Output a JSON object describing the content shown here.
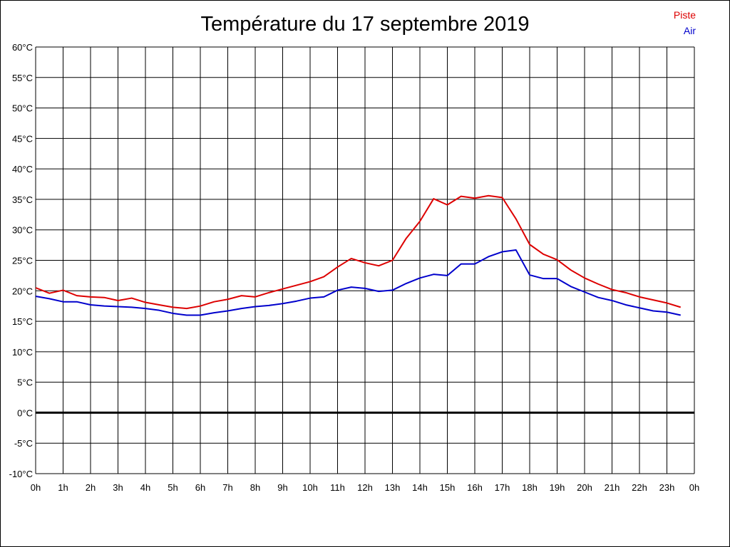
{
  "chart_data": {
    "type": "line",
    "title": "Température du 17 septembre 2019",
    "xlabel": "",
    "ylabel": "",
    "x_tick_labels": [
      "0h",
      "1h",
      "2h",
      "3h",
      "4h",
      "5h",
      "6h",
      "7h",
      "8h",
      "9h",
      "10h",
      "11h",
      "12h",
      "13h",
      "14h",
      "15h",
      "16h",
      "17h",
      "18h",
      "19h",
      "20h",
      "21h",
      "22h",
      "23h",
      "0h"
    ],
    "y_tick_labels": [
      "60°C",
      "55°C",
      "50°C",
      "45°C",
      "40°C",
      "35°C",
      "30°C",
      "25°C",
      "20°C",
      "15°C",
      "10°C",
      "5°C",
      "0°C",
      "-5°C",
      "-10°C"
    ],
    "ylim": [
      -10,
      60
    ],
    "xlim": [
      0,
      24
    ],
    "grid": true,
    "legend_position": "top-right",
    "x": [
      0,
      0.5,
      1,
      1.5,
      2,
      2.5,
      3,
      3.5,
      4,
      4.5,
      5,
      5.5,
      6,
      6.5,
      7,
      7.5,
      8,
      8.5,
      9,
      9.5,
      10,
      10.5,
      11,
      11.5,
      12,
      12.5,
      13,
      13.5,
      14,
      14.5,
      15,
      15.5,
      16,
      16.5,
      17,
      17.5,
      18,
      18.5,
      19,
      19.5,
      20,
      20.5,
      21,
      21.5,
      22,
      22.5,
      23,
      23.5
    ],
    "series": [
      {
        "name": "Piste",
        "color": "#dd0000",
        "values": [
          20.5,
          19.6,
          20.1,
          19.2,
          19.0,
          18.9,
          18.4,
          18.8,
          18.1,
          17.7,
          17.3,
          17.1,
          17.5,
          18.2,
          18.6,
          19.2,
          19.0,
          19.7,
          20.3,
          20.9,
          21.5,
          22.3,
          23.9,
          25.3,
          24.6,
          24.1,
          25.0,
          28.6,
          31.4,
          35.1,
          34.1,
          35.5,
          35.2,
          35.6,
          35.3,
          31.8,
          27.6,
          26.0,
          25.1,
          23.4,
          22.1,
          21.1,
          20.2,
          19.7,
          19.0,
          18.5,
          18.0,
          17.3
        ]
      },
      {
        "name": "Air",
        "color": "#0000cc",
        "values": [
          19.1,
          18.7,
          18.2,
          18.2,
          17.7,
          17.5,
          17.4,
          17.3,
          17.1,
          16.8,
          16.3,
          16.0,
          16.0,
          16.4,
          16.7,
          17.1,
          17.4,
          17.6,
          17.9,
          18.3,
          18.8,
          19.0,
          20.1,
          20.6,
          20.4,
          19.9,
          20.1,
          21.2,
          22.1,
          22.7,
          22.5,
          24.4,
          24.4,
          25.6,
          26.4,
          26.7,
          22.6,
          22.0,
          22.0,
          20.7,
          19.8,
          18.9,
          18.4,
          17.7,
          17.2,
          16.7,
          16.5,
          16.0
        ]
      }
    ]
  }
}
